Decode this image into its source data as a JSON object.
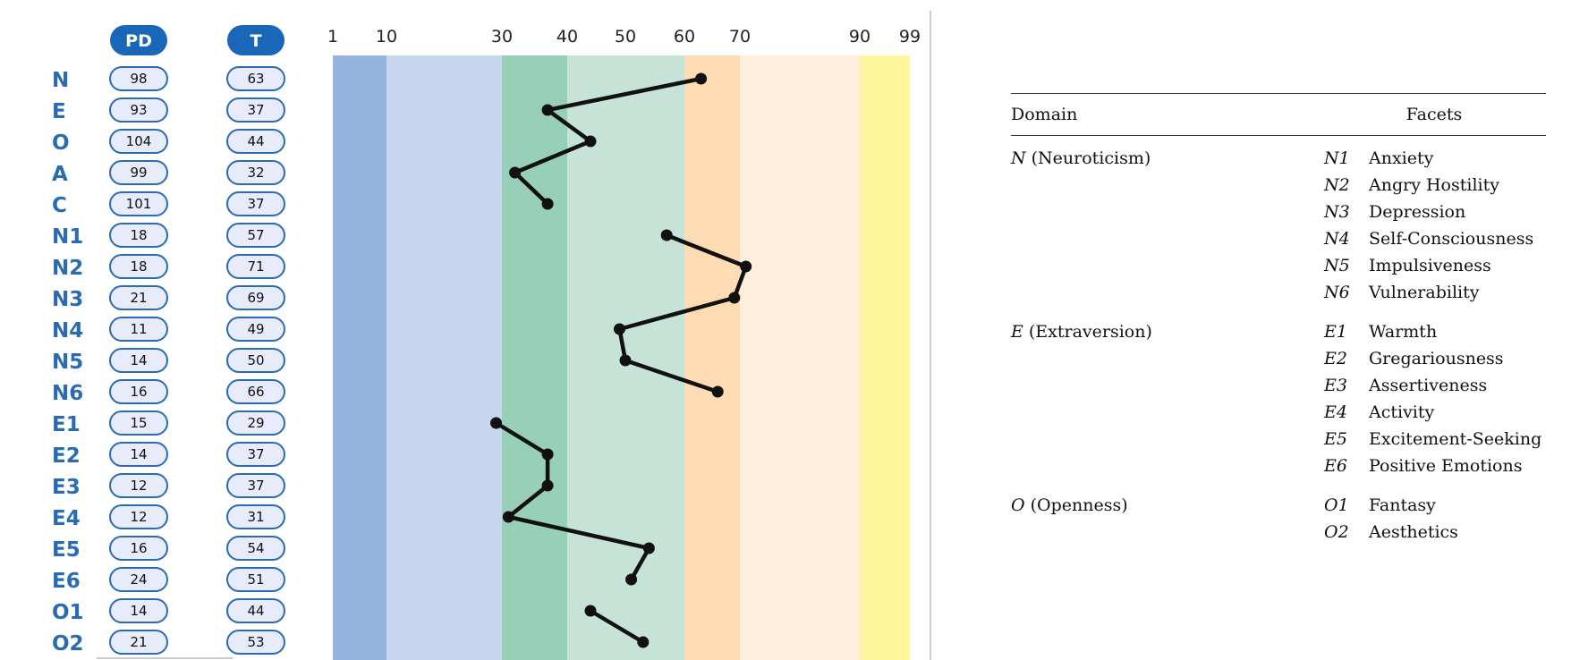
{
  "chart_data": {
    "type": "line",
    "orientation": "vertical-profile",
    "columns": {
      "pd_header": "PD",
      "t_header": "T"
    },
    "x_ticks": [
      "1",
      "10",
      "30",
      "40",
      "50",
      "60",
      "70",
      "90",
      "99"
    ],
    "bands": [
      {
        "from": 1,
        "to": 10,
        "color": "#95b4df"
      },
      {
        "from": 10,
        "to": 30,
        "color": "#c8d5ee"
      },
      {
        "from": 30,
        "to": 40,
        "color": "#97cfb8"
      },
      {
        "from": 40,
        "to": 60,
        "color": "#c6e3d8"
      },
      {
        "from": 60,
        "to": 70,
        "color": "#fddcb3"
      },
      {
        "from": 70,
        "to": 90,
        "color": "#feeedd"
      },
      {
        "from": 90,
        "to": 99,
        "color": "#fef59c"
      }
    ],
    "rows": [
      {
        "label": "N",
        "pd": "98",
        "t": "63"
      },
      {
        "label": "E",
        "pd": "93",
        "t": "37"
      },
      {
        "label": "O",
        "pd": "104",
        "t": "44"
      },
      {
        "label": "A",
        "pd": "99",
        "t": "32"
      },
      {
        "label": "C",
        "pd": "101",
        "t": "37"
      },
      {
        "label": "N1",
        "pd": "18",
        "t": "57"
      },
      {
        "label": "N2",
        "pd": "18",
        "t": "71"
      },
      {
        "label": "N3",
        "pd": "21",
        "t": "69"
      },
      {
        "label": "N4",
        "pd": "11",
        "t": "49"
      },
      {
        "label": "N5",
        "pd": "14",
        "t": "50"
      },
      {
        "label": "N6",
        "pd": "16",
        "t": "66"
      },
      {
        "label": "E1",
        "pd": "15",
        "t": "29"
      },
      {
        "label": "E2",
        "pd": "14",
        "t": "37"
      },
      {
        "label": "E3",
        "pd": "12",
        "t": "37"
      },
      {
        "label": "E4",
        "pd": "12",
        "t": "31"
      },
      {
        "label": "E5",
        "pd": "16",
        "t": "54"
      },
      {
        "label": "E6",
        "pd": "24",
        "t": "51"
      },
      {
        "label": "O1",
        "pd": "14",
        "t": "44"
      },
      {
        "label": "O2",
        "pd": "21",
        "t": "53"
      }
    ],
    "series": [
      {
        "name": "domains",
        "rows": [
          "N",
          "E",
          "O",
          "A",
          "C"
        ],
        "values": [
          63,
          37,
          44,
          32,
          37
        ]
      },
      {
        "name": "neuroticism facets",
        "rows": [
          "N1",
          "N2",
          "N3",
          "N4",
          "N5",
          "N6"
        ],
        "values": [
          57,
          71,
          69,
          49,
          50,
          66
        ]
      },
      {
        "name": "extraversion facets",
        "rows": [
          "E1",
          "E2",
          "E3",
          "E4",
          "E5",
          "E6"
        ],
        "values": [
          29,
          37,
          37,
          31,
          54,
          51
        ]
      },
      {
        "name": "openness facets",
        "rows": [
          "O1",
          "O2"
        ],
        "values": [
          44,
          53
        ]
      }
    ]
  },
  "legend": {
    "domain_header": "Domain",
    "facets_header": "Facets",
    "groups": [
      {
        "letter": "N",
        "name": "(Neuroticism)",
        "facets": [
          {
            "code": "N1",
            "name": "Anxiety"
          },
          {
            "code": "N2",
            "name": "Angry Hostility"
          },
          {
            "code": "N3",
            "name": "Depression"
          },
          {
            "code": "N4",
            "name": "Self-Consciousness"
          },
          {
            "code": "N5",
            "name": "Impulsiveness"
          },
          {
            "code": "N6",
            "name": "Vulnerability"
          }
        ]
      },
      {
        "letter": "E",
        "name": "(Extraversion)",
        "facets": [
          {
            "code": "E1",
            "name": "Warmth"
          },
          {
            "code": "E2",
            "name": "Gregariousness"
          },
          {
            "code": "E3",
            "name": "Assertiveness"
          },
          {
            "code": "E4",
            "name": "Activity"
          },
          {
            "code": "E5",
            "name": "Excitement-Seeking"
          },
          {
            "code": "E6",
            "name": "Positive Emotions"
          }
        ]
      },
      {
        "letter": "O",
        "name": "(Openness)",
        "facets": [
          {
            "code": "O1",
            "name": "Fantasy"
          },
          {
            "code": "O2",
            "name": "Aesthetics"
          }
        ]
      }
    ]
  }
}
